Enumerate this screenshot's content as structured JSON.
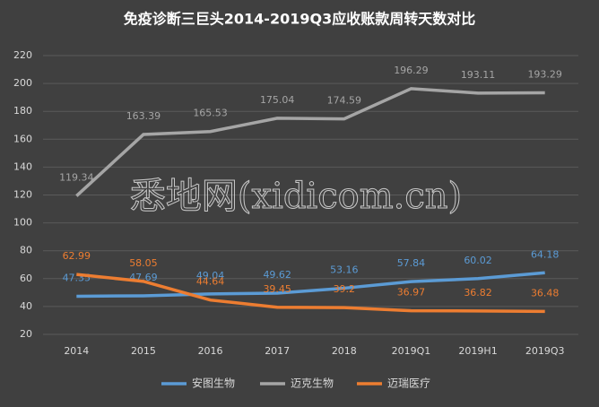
{
  "chart_data": {
    "type": "line",
    "title": "免疫诊断三巨头2014-2019Q3应收账款周转天数对比",
    "watermark": "悉地网(xidicom.cn)",
    "categories": [
      "2014",
      "2015",
      "2016",
      "2017",
      "2018",
      "2019Q1",
      "2019H1",
      "2019Q3"
    ],
    "series": [
      {
        "name": "安图生物",
        "color": "#5b9bd5",
        "values": [
          47.35,
          47.69,
          49.04,
          49.62,
          53.16,
          57.84,
          60.02,
          64.18
        ]
      },
      {
        "name": "迈克生物",
        "color": "#a5a5a5",
        "values": [
          119.34,
          163.39,
          165.53,
          175.04,
          174.59,
          196.29,
          193.11,
          193.29
        ]
      },
      {
        "name": "迈瑞医疗",
        "color": "#ed7d31",
        "values": [
          62.99,
          58.05,
          44.64,
          39.45,
          39.2,
          36.97,
          36.82,
          36.48
        ]
      }
    ],
    "ylim": [
      20,
      220
    ],
    "yticks": [
      20,
      40,
      60,
      80,
      100,
      120,
      140,
      160,
      180,
      200,
      220
    ],
    "grid": true,
    "legend": "bottom"
  }
}
